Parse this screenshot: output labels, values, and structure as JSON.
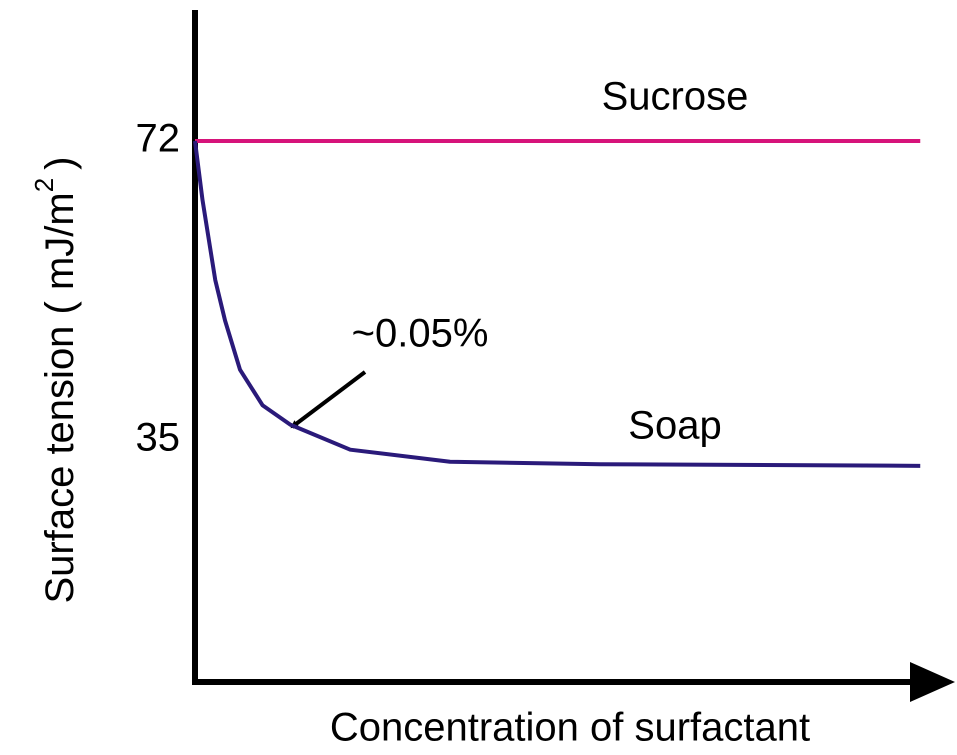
{
  "chart_data": {
    "type": "line",
    "ylabel": "Surface tension ( mJ/m",
    "ylabel_superscript": "2",
    "ylabel_end": ")",
    "xlabel": "Concentration of surfactant",
    "annotation": "~0.05%",
    "xlim": [
      0,
      100
    ],
    "ylim": [
      5,
      88
    ],
    "yticks": [
      35,
      72
    ],
    "grid": false,
    "series": [
      {
        "name": "Sucrose",
        "color": "#d6137a",
        "x": [
          0,
          96.7
        ],
        "values": [
          72,
          72
        ]
      },
      {
        "name": "Soap",
        "color": "#2a1a7a",
        "x": [
          0,
          1,
          2.7,
          4,
          6,
          9,
          12.7,
          20.7,
          34,
          54,
          96.7
        ],
        "values": [
          72,
          64.7,
          54.8,
          49.8,
          43.7,
          39.3,
          36.9,
          33.8,
          32.3,
          32.0,
          31.8
        ]
      }
    ]
  }
}
